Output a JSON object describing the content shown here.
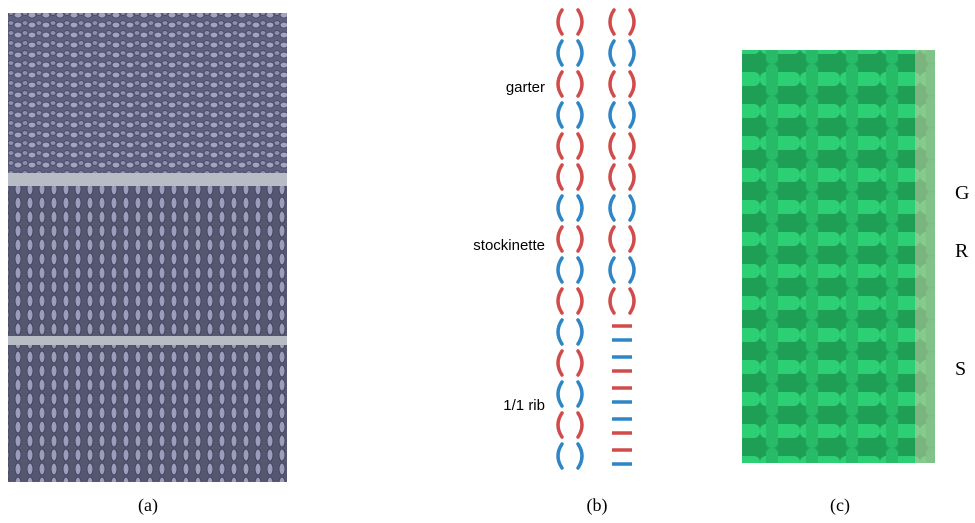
{
  "panels": {
    "a": {
      "caption": "(a)"
    },
    "b": {
      "caption": "(b)",
      "labels": [
        "garter",
        "stockinette",
        "1/1 rib"
      ]
    },
    "c": {
      "caption": "(c)",
      "labels": [
        "G",
        "R",
        "S"
      ]
    }
  }
}
